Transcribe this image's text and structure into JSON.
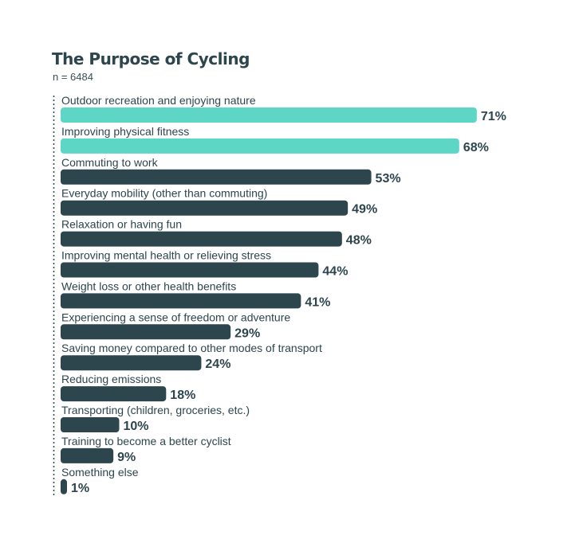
{
  "chart_data": {
    "type": "bar",
    "orientation": "horizontal",
    "title": "The Purpose of Cycling",
    "subtitle": "n = 6484",
    "categories": [
      "Outdoor recreation and enjoying nature",
      "Improving physical fitness",
      "Commuting to work",
      "Everyday mobility (other than commuting)",
      "Relaxation or having fun",
      "Improving mental health or relieving stress",
      "Weight loss or other health benefits",
      "Experiencing a sense of freedom or adventure",
      "Saving money compared to other modes of transport",
      "Reducing emissions",
      "Transporting (children, groceries, etc.)",
      "Training to become a better cyclist",
      "Something else"
    ],
    "values": [
      71,
      68,
      53,
      49,
      48,
      44,
      41,
      29,
      24,
      18,
      10,
      9,
      1
    ],
    "value_labels": [
      "71%",
      "68%",
      "53%",
      "49%",
      "48%",
      "44%",
      "41%",
      "29%",
      "24%",
      "18%",
      "10%",
      "9%",
      "1%"
    ],
    "highlighted_count": 2,
    "xlim": [
      0,
      100
    ],
    "grid": false,
    "colors": {
      "highlight": "#5dd6c6",
      "default": "#2d454d",
      "text": "#2d454d"
    }
  }
}
